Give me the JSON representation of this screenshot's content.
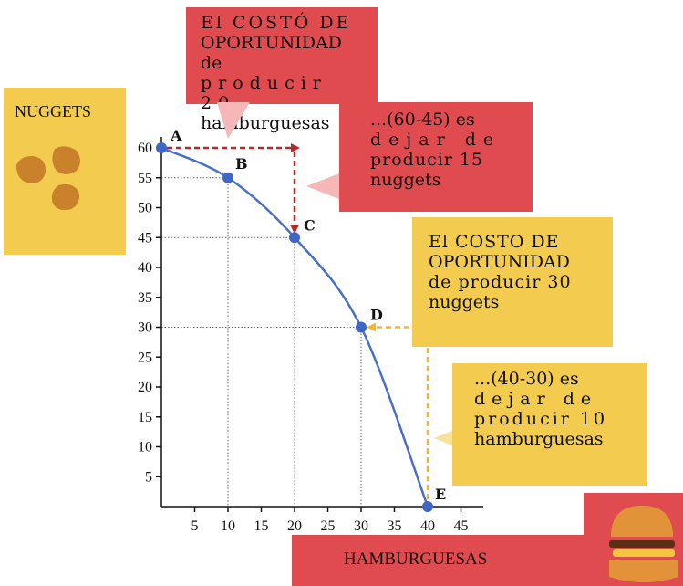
{
  "chart_data": {
    "type": "line",
    "title": "",
    "xlabel": "HAMBURGUESAS",
    "ylabel": "NUGGETS",
    "xlim": [
      0,
      45
    ],
    "ylim": [
      0,
      60
    ],
    "xticks": [
      5,
      10,
      15,
      20,
      25,
      30,
      35,
      40,
      45
    ],
    "yticks": [
      5,
      10,
      15,
      20,
      25,
      30,
      35,
      40,
      45,
      50,
      55,
      60
    ],
    "grid": "dotted guide lines to points",
    "series": [
      {
        "points": [
          {
            "label": "A",
            "x": 0,
            "y": 60
          },
          {
            "label": "B",
            "x": 10,
            "y": 55
          },
          {
            "label": "C",
            "x": 20,
            "y": 45
          },
          {
            "label": "D",
            "x": 30,
            "y": 30
          },
          {
            "label": "E",
            "x": 40,
            "y": 0
          }
        ]
      }
    ],
    "annotations": [
      {
        "text": "El COSTÓ DE OPORTUNIDAD de producir 20 hamburguesas",
        "color": "#e04b50"
      },
      {
        "text": "...(60-45) es dejar de producir 15 nuggets",
        "color": "#e04b50"
      },
      {
        "text": "El COSTO DE OPORTUNIDAD de producir 30 nuggets",
        "color": "#f3cb4e"
      },
      {
        "text": "...(40-30) es dejar de producir 10 hamburguesas",
        "color": "#f3cb4e"
      }
    ],
    "arrows": [
      {
        "from": "A",
        "to": "C",
        "color": "#b52a2a",
        "style": "dashed"
      },
      {
        "from": "E",
        "to": "D",
        "color": "#f0b733",
        "style": "dashed"
      }
    ]
  },
  "callouts": {
    "cost_20_burgers": {
      "lines": [
        "El COSTÓ DE",
        "OPORTUNIDAD de",
        "producir 20",
        "hamburguesas"
      ]
    },
    "result_15_nuggets": {
      "lines": [
        "...(60-45) es",
        "dejar de",
        "producir 15",
        "nuggets"
      ]
    },
    "cost_30_nuggets": {
      "lines": [
        "El COSTO DE",
        "OPORTUNIDAD",
        "de producir 30",
        "nuggets"
      ]
    },
    "result_10_burgers": {
      "lines": [
        "...(40-30) es",
        "dejar de",
        "producir 10",
        "hamburguesas"
      ]
    }
  },
  "y_axis_tile": {
    "label": "NUGGETS",
    "image": "nuggets-icon"
  },
  "x_axis_tile": {
    "label": "HAMBURGUESAS",
    "image": "hamburger-icon"
  },
  "colors": {
    "curve": "#4a6fc8",
    "point": "#3f66c4",
    "red_box": "#e04b50",
    "yellow_box": "#f3cb4e",
    "dark_red_arrow": "#b52a2a",
    "yellow_arrow": "#f0b733"
  }
}
